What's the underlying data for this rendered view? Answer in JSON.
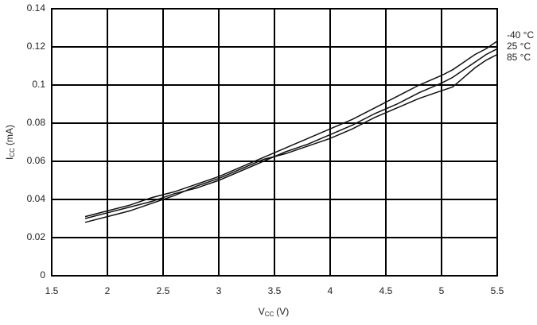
{
  "chart_data": {
    "type": "line",
    "x": [
      1.8,
      2,
      2.2,
      2.4,
      2.6,
      2.8,
      3,
      3.2,
      3.4,
      3.6,
      3.8,
      4,
      4.2,
      4.4,
      4.6,
      4.8,
      5,
      5.1,
      5.2,
      5.3,
      5.4,
      5.5
    ],
    "series": [
      {
        "name": "-40 °C",
        "color": "#111111",
        "values": [
          0.031,
          0.034,
          0.037,
          0.041,
          0.044,
          0.048,
          0.052,
          0.057,
          0.062,
          0.067,
          0.072,
          0.077,
          0.082,
          0.088,
          0.094,
          0.1,
          0.105,
          0.108,
          0.112,
          0.116,
          0.119,
          0.123
        ]
      },
      {
        "name": "25 °C",
        "color": "#111111",
        "values": [
          0.03,
          0.033,
          0.036,
          0.039,
          0.043,
          0.046,
          0.05,
          0.055,
          0.06,
          0.065,
          0.069,
          0.074,
          0.079,
          0.085,
          0.09,
          0.096,
          0.101,
          0.104,
          0.108,
          0.112,
          0.116,
          0.119
        ]
      },
      {
        "name": "85 °C",
        "color": "#111111",
        "values": [
          0.028,
          0.031,
          0.034,
          0.038,
          0.042,
          0.047,
          0.051,
          0.056,
          0.061,
          0.064,
          0.068,
          0.072,
          0.077,
          0.083,
          0.088,
          0.093,
          0.097,
          0.099,
          0.104,
          0.109,
          0.113,
          0.116
        ]
      }
    ],
    "xlabel": {
      "symbol": "V",
      "subscript": "CC",
      "unit": "(V)"
    },
    "ylabel": {
      "symbol": "I",
      "subscript": "CC",
      "unit": "(mA)"
    },
    "xlim": [
      1.5,
      5.5
    ],
    "xticks": [
      1.5,
      2,
      2.5,
      3,
      3.5,
      4,
      4.5,
      5,
      5.5
    ],
    "ylim": [
      0,
      0.14
    ],
    "yticks": [
      0,
      0.02,
      0.04,
      0.06,
      0.08,
      0.1,
      0.12,
      0.14
    ],
    "grid": true
  }
}
